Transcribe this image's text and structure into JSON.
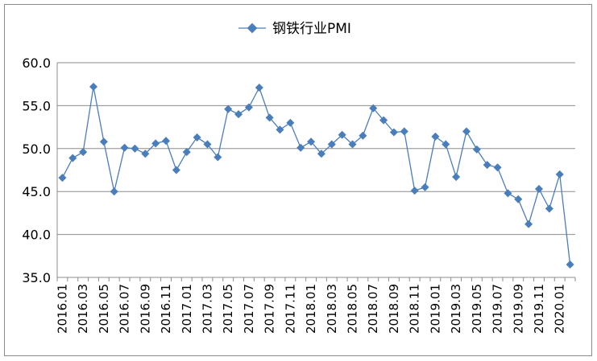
{
  "chart_data": {
    "type": "line",
    "legend": {
      "label": "钢铁行业PMI",
      "placement": "top-center"
    },
    "color": "#4a7ebb",
    "ylim": [
      35.0,
      60.0
    ],
    "yticks": [
      "35.0",
      "40.0",
      "45.0",
      "50.0",
      "55.0",
      "60.0"
    ],
    "ytick_values": [
      35,
      40,
      45,
      50,
      55,
      60
    ],
    "grid": "horizontal",
    "x_labels": [
      "2016.01",
      "2016.03",
      "2016.05",
      "2016.07",
      "2016.09",
      "2016.11",
      "2017.01",
      "2017.03",
      "2017.05",
      "2017.07",
      "2017.09",
      "2017.11",
      "2018.01",
      "2018.03",
      "2018.05",
      "2018.07",
      "2018.09",
      "2018.11",
      "2019.01",
      "2019.03",
      "2019.05",
      "2019.07",
      "2019.09",
      "2019.11",
      "2020.01"
    ],
    "series": [
      {
        "name": "钢铁行业PMI",
        "x": [
          "2016.01",
          "2016.02",
          "2016.03",
          "2016.04",
          "2016.05",
          "2016.06",
          "2016.07",
          "2016.08",
          "2016.09",
          "2016.10",
          "2016.11",
          "2016.12",
          "2017.01",
          "2017.02",
          "2017.03",
          "2017.04",
          "2017.05",
          "2017.06",
          "2017.07",
          "2017.08",
          "2017.09",
          "2017.10",
          "2017.11",
          "2017.12",
          "2018.01",
          "2018.02",
          "2018.03",
          "2018.04",
          "2018.05",
          "2018.06",
          "2018.07",
          "2018.08",
          "2018.09",
          "2018.10",
          "2018.11",
          "2018.12",
          "2019.01",
          "2019.02",
          "2019.03",
          "2019.04",
          "2019.05",
          "2019.06",
          "2019.07",
          "2019.08",
          "2019.09",
          "2019.10",
          "2019.11",
          "2019.12",
          "2020.01",
          "2020.02"
        ],
        "values": [
          46.6,
          48.9,
          49.6,
          57.2,
          50.8,
          45.0,
          50.1,
          50.0,
          49.4,
          50.6,
          50.9,
          47.5,
          49.6,
          51.3,
          50.5,
          49.0,
          54.6,
          54.0,
          54.8,
          57.1,
          53.6,
          52.2,
          53.0,
          50.1,
          50.8,
          49.4,
          50.5,
          51.6,
          50.5,
          51.5,
          54.7,
          53.3,
          51.9,
          52.0,
          45.1,
          45.5,
          51.4,
          50.5,
          46.7,
          52.0,
          49.9,
          48.1,
          47.8,
          44.8,
          44.1,
          41.2,
          45.3,
          43.0,
          47.0,
          36.5
        ]
      }
    ]
  }
}
